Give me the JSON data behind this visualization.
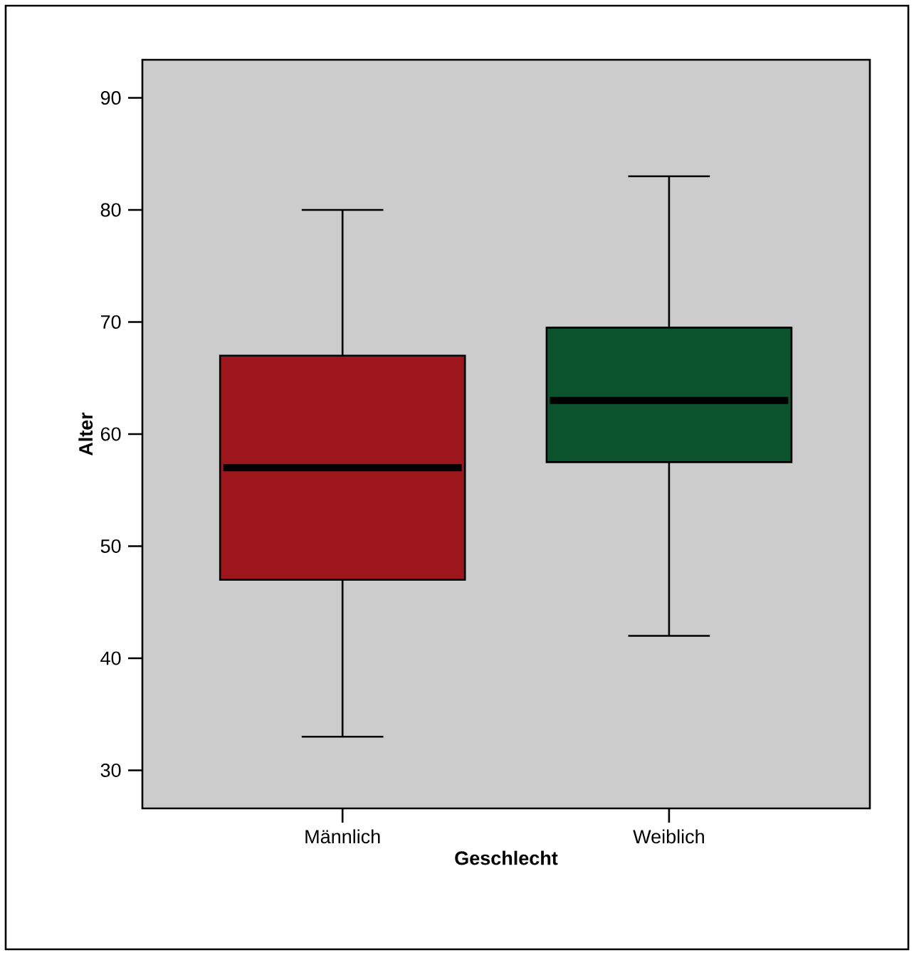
{
  "chart_data": {
    "type": "box",
    "xlabel": "Geschlecht",
    "ylabel": "Alter",
    "categories": [
      "Männlich",
      "Weiblich"
    ],
    "colors": [
      "#9c161b",
      "#0b532c"
    ],
    "boxes": [
      {
        "low": 33,
        "q1": 47,
        "median": 57,
        "q3": 67,
        "high": 80
      },
      {
        "low": 42,
        "q1": 57.5,
        "median": 63,
        "q3": 69.5,
        "high": 83
      }
    ],
    "ylim": [
      26.6,
      93.4
    ],
    "yticks": [
      30,
      40,
      50,
      60,
      70,
      80,
      90
    ]
  }
}
